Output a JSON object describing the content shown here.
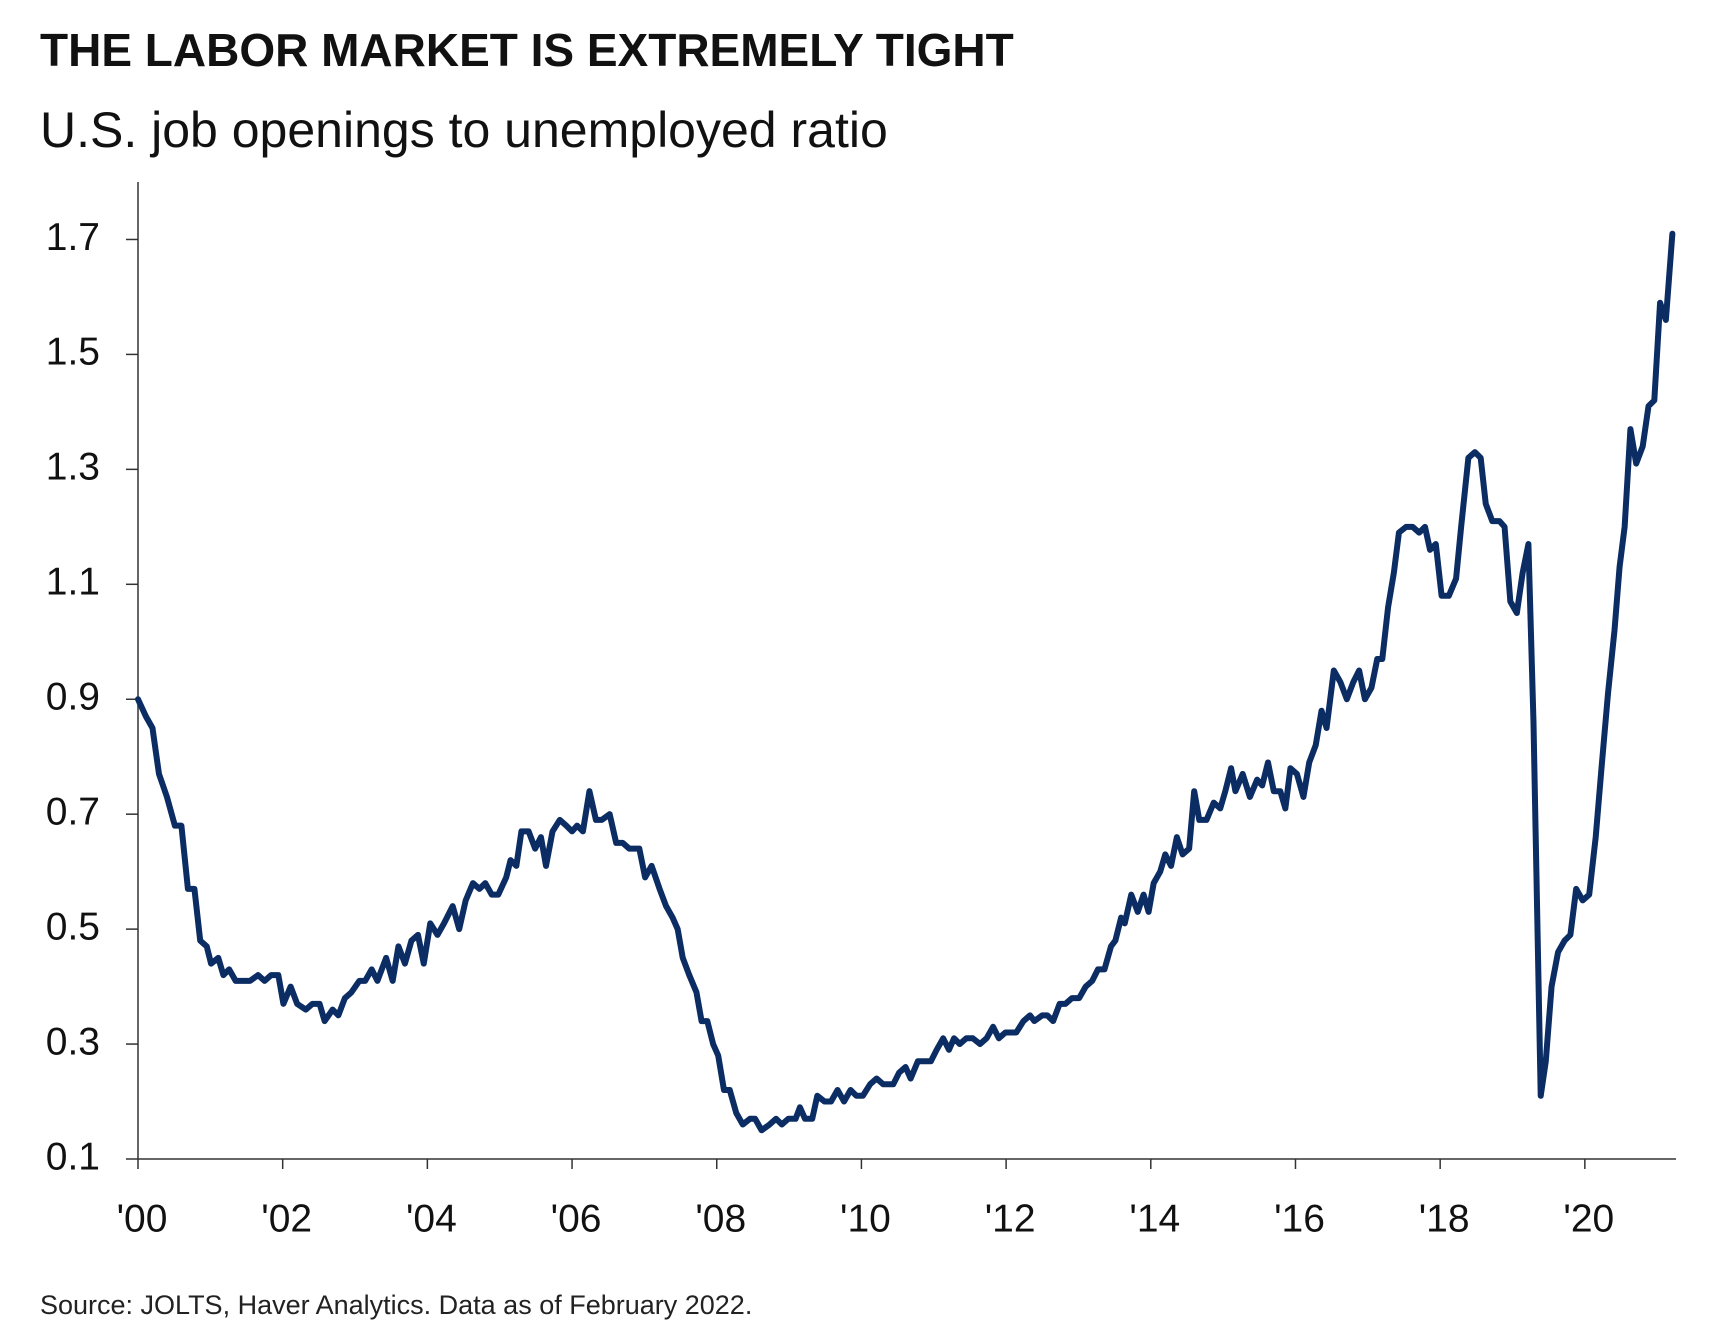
{
  "chart_data": {
    "type": "line",
    "title": "THE LABOR MARKET IS EXTREMELY TIGHT",
    "subtitle": "U.S. job openings to unemployed ratio",
    "source": "Source: JOLTS, Haver Analytics. Data as of February 2022.",
    "color": "#0b2d64",
    "xlim": [
      2000,
      2021.26
    ],
    "ylim": [
      0.1,
      1.8
    ],
    "yticks": [
      {
        "value": 0.1,
        "label": "0.1"
      },
      {
        "value": 0.3,
        "label": "0.3"
      },
      {
        "value": 0.5,
        "label": "0.5"
      },
      {
        "value": 0.7,
        "label": "0.7"
      },
      {
        "value": 0.9,
        "label": "0.9"
      },
      {
        "value": 1.1,
        "label": "1.1"
      },
      {
        "value": 1.3,
        "label": "1.3"
      },
      {
        "value": 1.5,
        "label": "1.5"
      },
      {
        "value": 1.7,
        "label": "1.7"
      }
    ],
    "xticks": [
      {
        "value": 2000,
        "label": "'00"
      },
      {
        "value": 2002,
        "label": "'02"
      },
      {
        "value": 2004,
        "label": "'04"
      },
      {
        "value": 2006,
        "label": "'06"
      },
      {
        "value": 2008,
        "label": "'08"
      },
      {
        "value": 2010,
        "label": "'10"
      },
      {
        "value": 2012,
        "label": "'12"
      },
      {
        "value": 2014,
        "label": "'14"
      },
      {
        "value": 2016,
        "label": "'16"
      },
      {
        "value": 2018,
        "label": "'18"
      },
      {
        "value": 2020,
        "label": "'20"
      }
    ],
    "x": [
      2000.0,
      2000.11,
      2000.2,
      2000.29,
      2000.4,
      2000.51,
      2000.6,
      2000.69,
      2000.78,
      2000.86,
      2000.95,
      2001.01,
      2001.11,
      2001.18,
      2001.26,
      2001.35,
      2001.45,
      2001.55,
      2001.66,
      2001.75,
      2001.84,
      2001.94,
      2002.01,
      2002.11,
      2002.2,
      2002.32,
      2002.41,
      2002.51,
      2002.58,
      2002.69,
      2002.77,
      2002.86,
      2002.95,
      2003.06,
      2003.14,
      2003.23,
      2003.31,
      2003.43,
      2003.52,
      2003.6,
      2003.69,
      2003.78,
      2003.87,
      2003.95,
      2004.04,
      2004.14,
      2004.23,
      2004.35,
      2004.44,
      2004.53,
      2004.63,
      2004.72,
      2004.8,
      2004.89,
      2004.98,
      2005.09,
      2005.15,
      2005.23,
      2005.3,
      2005.4,
      2005.49,
      2005.57,
      2005.64,
      2005.73,
      2005.83,
      2005.92,
      2006.0,
      2006.07,
      2006.15,
      2006.24,
      2006.33,
      2006.41,
      2006.52,
      2006.61,
      2006.7,
      2006.79,
      2006.93,
      2007.01,
      2007.1,
      2007.21,
      2007.3,
      2007.39,
      2007.46,
      2007.53,
      2007.62,
      2007.72,
      2007.79,
      2007.87,
      2007.95,
      2008.02,
      2008.1,
      2008.18,
      2008.27,
      2008.36,
      2008.46,
      2008.53,
      2008.62,
      2008.73,
      2008.82,
      2008.9,
      2008.99,
      2009.09,
      2009.15,
      2009.22,
      2009.32,
      2009.39,
      2009.49,
      2009.58,
      2009.67,
      2009.76,
      2009.85,
      2009.93,
      2010.02,
      2010.12,
      2010.21,
      2010.3,
      2010.44,
      2010.52,
      2010.61,
      2010.68,
      2010.78,
      2010.87,
      2010.96,
      2011.04,
      2011.13,
      2011.21,
      2011.28,
      2011.36,
      2011.45,
      2011.54,
      2011.64,
      2011.73,
      2011.82,
      2011.9,
      2011.99,
      2012.08,
      2012.14,
      2012.24,
      2012.33,
      2012.39,
      2012.5,
      2012.57,
      2012.65,
      2012.74,
      2012.82,
      2012.91,
      2013.01,
      2013.1,
      2013.19,
      2013.27,
      2013.36,
      2013.45,
      2013.51,
      2013.59,
      2013.64,
      2013.73,
      2013.82,
      2013.9,
      2013.97,
      2014.04,
      2014.13,
      2014.2,
      2014.28,
      2014.36,
      2014.44,
      2014.53,
      2014.6,
      2014.67,
      2014.77,
      2014.87,
      2014.96,
      2015.03,
      2015.11,
      2015.17,
      2015.27,
      2015.37,
      2015.47,
      2015.54,
      2015.62,
      2015.7,
      2015.79,
      2015.86,
      2015.93,
      2016.02,
      2016.11,
      2016.19,
      2016.28,
      2016.36,
      2016.43,
      2016.53,
      2016.62,
      2016.71,
      2016.8,
      2016.88,
      2016.96,
      2017.05,
      2017.13,
      2017.2,
      2017.28,
      2017.36,
      2017.43,
      2017.53,
      2017.62,
      2017.71,
      2017.79,
      2017.86,
      2017.94,
      2018.02,
      2018.12,
      2018.22,
      2018.29,
      2018.39,
      2018.48,
      2018.56,
      2018.63,
      2018.72,
      2018.82,
      2018.89,
      2018.97,
      2019.06,
      2019.14,
      2019.22,
      2019.29,
      2019.39,
      2019.46,
      2019.54,
      2019.63,
      2019.72,
      2019.8,
      2019.88,
      2019.97,
      2020.06,
      2020.15,
      2020.23,
      2020.32,
      2020.41,
      2020.48,
      2020.55,
      2020.63,
      2020.71,
      2020.8,
      2020.88,
      2020.96,
      2021.04,
      2021.12,
      2021.21
    ],
    "values": [
      0.9,
      0.87,
      0.85,
      0.77,
      0.73,
      0.68,
      0.68,
      0.57,
      0.57,
      0.48,
      0.47,
      0.44,
      0.45,
      0.42,
      0.43,
      0.41,
      0.41,
      0.41,
      0.42,
      0.41,
      0.42,
      0.42,
      0.37,
      0.4,
      0.37,
      0.36,
      0.37,
      0.37,
      0.34,
      0.36,
      0.35,
      0.38,
      0.39,
      0.41,
      0.41,
      0.43,
      0.41,
      0.45,
      0.41,
      0.47,
      0.44,
      0.48,
      0.49,
      0.44,
      0.51,
      0.49,
      0.51,
      0.54,
      0.5,
      0.55,
      0.58,
      0.57,
      0.58,
      0.56,
      0.56,
      0.59,
      0.62,
      0.61,
      0.67,
      0.67,
      0.64,
      0.66,
      0.61,
      0.67,
      0.69,
      0.68,
      0.67,
      0.68,
      0.67,
      0.74,
      0.69,
      0.69,
      0.7,
      0.65,
      0.65,
      0.64,
      0.64,
      0.59,
      0.61,
      0.57,
      0.54,
      0.52,
      0.5,
      0.45,
      0.42,
      0.39,
      0.34,
      0.34,
      0.3,
      0.28,
      0.22,
      0.22,
      0.18,
      0.16,
      0.17,
      0.17,
      0.15,
      0.16,
      0.17,
      0.16,
      0.17,
      0.17,
      0.19,
      0.17,
      0.17,
      0.21,
      0.2,
      0.2,
      0.22,
      0.2,
      0.22,
      0.21,
      0.21,
      0.23,
      0.24,
      0.23,
      0.23,
      0.25,
      0.26,
      0.24,
      0.27,
      0.27,
      0.27,
      0.29,
      0.31,
      0.29,
      0.31,
      0.3,
      0.31,
      0.31,
      0.3,
      0.31,
      0.33,
      0.31,
      0.32,
      0.32,
      0.32,
      0.34,
      0.35,
      0.34,
      0.35,
      0.35,
      0.34,
      0.37,
      0.37,
      0.38,
      0.38,
      0.4,
      0.41,
      0.43,
      0.43,
      0.47,
      0.48,
      0.52,
      0.51,
      0.56,
      0.53,
      0.56,
      0.53,
      0.58,
      0.6,
      0.63,
      0.61,
      0.66,
      0.63,
      0.64,
      0.74,
      0.69,
      0.69,
      0.72,
      0.71,
      0.74,
      0.78,
      0.74,
      0.77,
      0.73,
      0.76,
      0.75,
      0.79,
      0.74,
      0.74,
      0.71,
      0.78,
      0.77,
      0.73,
      0.79,
      0.82,
      0.88,
      0.85,
      0.95,
      0.93,
      0.9,
      0.93,
      0.95,
      0.9,
      0.92,
      0.97,
      0.97,
      1.06,
      1.12,
      1.19,
      1.2,
      1.2,
      1.19,
      1.2,
      1.16,
      1.17,
      1.08,
      1.08,
      1.11,
      1.2,
      1.32,
      1.33,
      1.32,
      1.24,
      1.21,
      1.21,
      1.2,
      1.07,
      1.05,
      1.12,
      1.17,
      0.86,
      0.21,
      0.27,
      0.4,
      0.46,
      0.48,
      0.49,
      0.57,
      0.55,
      0.56,
      0.66,
      0.78,
      0.91,
      1.02,
      1.13,
      1.2,
      1.37,
      1.31,
      1.34,
      1.41,
      1.42,
      1.59,
      1.56,
      1.71
    ]
  }
}
